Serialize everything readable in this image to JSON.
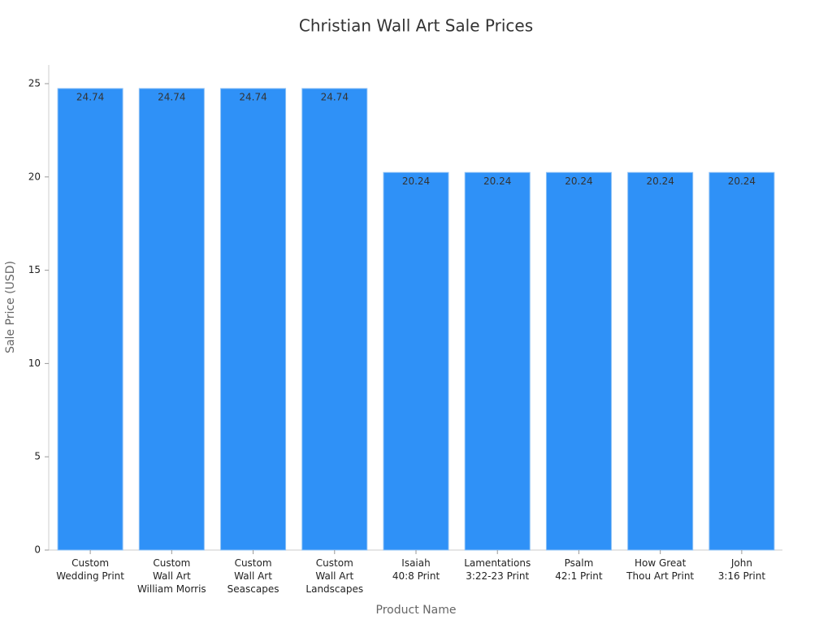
{
  "chart_data": {
    "type": "bar",
    "title": "Christian Wall Art Sale Prices",
    "x_label": "Product Name",
    "y_label": "Sale Price (USD)",
    "categories": [
      "Custom\nWedding Print",
      "Custom\nWall Art\nWilliam Morris",
      "Custom\nWall Art\nSeascapes",
      "Custom\nWall Art\nLandscapes",
      "Isaiah\n40:8 Print",
      "Lamentations\n3:22-23 Print",
      "Psalm\n42:1 Print",
      "How Great\nThou Art Print",
      "John\n3:16 Print"
    ],
    "values": [
      24.74,
      24.74,
      24.74,
      24.74,
      20.24,
      20.24,
      20.24,
      20.24,
      20.24
    ],
    "color": "#2f91f7",
    "ylim": [
      0,
      26
    ],
    "yticks": [
      0,
      5,
      10,
      15,
      20,
      25
    ],
    "grid": false
  }
}
